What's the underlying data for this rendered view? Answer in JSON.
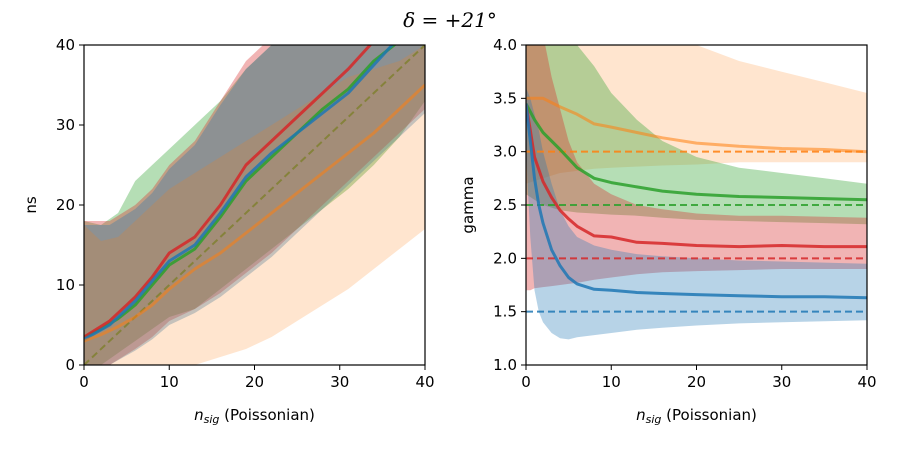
{
  "figure": {
    "title": "δ = +21°"
  },
  "colors": {
    "blue": "#1f77b4",
    "red": "#d62728",
    "green": "#2ca02c",
    "orange": "#ff7f0e"
  },
  "chart_data": [
    {
      "type": "line",
      "xlabel_main": "n",
      "xlabel_sub": "sig",
      "xlabel_rest": " (Poissonian)",
      "ylabel": "ns",
      "xlim": [
        0,
        40
      ],
      "ylim": [
        0,
        40
      ],
      "xticks": [
        "0",
        "10",
        "20",
        "30",
        "40"
      ],
      "yticks": [
        "0",
        "10",
        "20",
        "30",
        "40"
      ],
      "grid": false,
      "legend": "none",
      "reference_lines": [
        {
          "color": "olive",
          "style": "dashed",
          "x": [
            0,
            40
          ],
          "y": [
            0,
            40
          ]
        }
      ],
      "series": [
        {
          "color": "green",
          "x": [
            0,
            2,
            4,
            6,
            8,
            10,
            13,
            16,
            19,
            22,
            25,
            28,
            31,
            34,
            37,
            40
          ],
          "y": [
            3.5,
            4.5,
            5.8,
            7.5,
            10,
            12.5,
            14.5,
            18.5,
            23,
            26,
            29,
            32,
            34.5,
            38,
            40.5,
            43
          ],
          "band_low": [
            0.0,
            0.0,
            1.5,
            3.0,
            4.5,
            6.0,
            7.0,
            9.5,
            12.0,
            14.5,
            17.0,
            19.5,
            22.0,
            25.0,
            28.5,
            33.0
          ],
          "band_high": [
            18.0,
            17.5,
            19.0,
            23.0,
            25.0,
            27.0,
            30.0,
            33.0,
            37.0,
            40.0,
            43.0,
            46.0,
            49.0,
            52.0,
            55.0,
            58.0
          ]
        },
        {
          "color": "red",
          "x": [
            0,
            3,
            6,
            8,
            10,
            13,
            16,
            19,
            22,
            25,
            28,
            31,
            34,
            37,
            40
          ],
          "y": [
            3.5,
            5.5,
            8.5,
            11,
            14,
            16,
            20,
            25,
            28,
            31,
            34,
            37,
            40.5,
            44,
            47
          ],
          "band_low": [
            0.0,
            0.0,
            2.0,
            3.5,
            5.5,
            7.0,
            9.0,
            11.5,
            14.0,
            17.0,
            20.0,
            23.0,
            26.0,
            29.0,
            32.0
          ],
          "band_high": [
            18.0,
            18.0,
            20.0,
            22.0,
            25.0,
            28.0,
            33.0,
            38.0,
            41.0,
            44.0,
            47.0,
            50.0,
            53.0,
            56.0,
            59.0
          ]
        },
        {
          "color": "blue",
          "x": [
            0,
            3,
            6,
            8,
            10,
            13,
            16,
            19,
            22,
            25,
            28,
            31,
            34,
            37,
            40
          ],
          "y": [
            3.2,
            5,
            8,
            10.5,
            13,
            15,
            19,
            23.5,
            26.5,
            29,
            31.5,
            34,
            37.5,
            41,
            44
          ],
          "band_low": [
            0.0,
            0.0,
            1.8,
            3.2,
            5.0,
            6.5,
            8.5,
            11.0,
            13.5,
            16.5,
            19.5,
            22.5,
            25.5,
            28.5,
            31.5
          ],
          "band_high": [
            17.5,
            17.5,
            19.5,
            21.5,
            24.5,
            27.5,
            32.5,
            37.0,
            40.0,
            43.0,
            46.0,
            49.0,
            52.0,
            55.0,
            58.0
          ]
        },
        {
          "color": "orange",
          "x": [
            0,
            2,
            4,
            6,
            8,
            10,
            13,
            16,
            19,
            22,
            25,
            28,
            31,
            34,
            37,
            40
          ],
          "y": [
            3,
            3.8,
            4.8,
            6,
            7.5,
            9.5,
            12,
            14,
            16.5,
            19,
            21.5,
            24,
            26.5,
            29,
            32,
            35
          ],
          "band_low": [
            0.0,
            0.0,
            0.0,
            0.0,
            0.0,
            0.0,
            0.0,
            1.0,
            2.0,
            3.5,
            5.5,
            7.5,
            9.5,
            12.0,
            14.5,
            17.0
          ],
          "band_high": [
            17.5,
            15.5,
            16.0,
            18.0,
            20.0,
            22.0,
            24.0,
            26.0,
            28.0,
            30.0,
            32.0,
            34.0,
            36.0,
            37.0,
            38.0,
            40.0
          ]
        }
      ]
    },
    {
      "type": "line",
      "xlabel_main": "n",
      "xlabel_sub": "sig",
      "xlabel_rest": " (Poissonian)",
      "ylabel": "gamma",
      "xlim": [
        0,
        40
      ],
      "ylim": [
        1.0,
        4.0
      ],
      "xticks": [
        "0",
        "10",
        "20",
        "30",
        "40"
      ],
      "yticks": [
        "1.0",
        "1.5",
        "2.0",
        "2.5",
        "3.0",
        "3.5",
        "4.0"
      ],
      "grid": false,
      "legend": "none",
      "reference_lines": [
        {
          "color": "blue",
          "style": "dashed",
          "y": 1.5
        },
        {
          "color": "red",
          "style": "dashed",
          "y": 2.0
        },
        {
          "color": "green",
          "style": "dashed",
          "y": 2.5
        },
        {
          "color": "orange",
          "style": "dashed",
          "y": 3.0
        }
      ],
      "series": [
        {
          "color": "orange",
          "x": [
            0,
            2,
            4,
            6,
            8,
            10,
            13,
            16,
            20,
            25,
            30,
            35,
            40
          ],
          "y": [
            3.5,
            3.5,
            3.42,
            3.35,
            3.26,
            3.23,
            3.18,
            3.13,
            3.08,
            3.05,
            3.03,
            3.02,
            3.0
          ],
          "band_low": [
            2.7,
            2.75,
            2.8,
            2.82,
            2.84,
            2.85,
            2.86,
            2.87,
            2.88,
            2.9,
            2.9,
            2.9,
            2.9
          ],
          "band_high": [
            4.1,
            4.1,
            4.1,
            4.1,
            4.1,
            4.1,
            4.1,
            4.1,
            4.0,
            3.85,
            3.75,
            3.65,
            3.55
          ]
        },
        {
          "color": "green",
          "x": [
            0,
            1,
            2,
            4,
            6,
            8,
            10,
            13,
            16,
            20,
            25,
            30,
            35,
            40
          ],
          "y": [
            3.45,
            3.3,
            3.18,
            3.02,
            2.85,
            2.75,
            2.71,
            2.67,
            2.63,
            2.6,
            2.58,
            2.57,
            2.56,
            2.55
          ],
          "band_low": [
            2.6,
            2.55,
            2.5,
            2.45,
            2.43,
            2.42,
            2.41,
            2.4,
            2.38,
            2.36,
            2.35,
            2.34,
            2.33,
            2.32
          ],
          "band_high": [
            4.1,
            4.1,
            4.1,
            4.1,
            4.0,
            3.8,
            3.55,
            3.3,
            3.1,
            2.95,
            2.85,
            2.8,
            2.75,
            2.7
          ]
        },
        {
          "color": "red",
          "x": [
            0,
            0.5,
            1,
            2,
            3,
            4,
            5,
            6,
            8,
            10,
            13,
            16,
            20,
            25,
            30,
            35,
            40
          ],
          "y": [
            3.45,
            3.2,
            2.95,
            2.72,
            2.57,
            2.45,
            2.37,
            2.3,
            2.21,
            2.2,
            2.15,
            2.14,
            2.12,
            2.11,
            2.12,
            2.11,
            2.11
          ],
          "band_low": [
            1.7,
            1.7,
            1.72,
            1.73,
            1.74,
            1.75,
            1.76,
            1.77,
            1.8,
            1.82,
            1.85,
            1.87,
            1.88,
            1.89,
            1.9,
            1.9,
            1.9
          ],
          "band_high": [
            4.1,
            4.1,
            4.1,
            4.1,
            3.7,
            3.4,
            3.1,
            2.9,
            2.7,
            2.6,
            2.5,
            2.46,
            2.42,
            2.4,
            2.4,
            2.39,
            2.38
          ]
        },
        {
          "color": "blue",
          "x": [
            0,
            0.5,
            1,
            1.5,
            2,
            3,
            4,
            5,
            6,
            8,
            10,
            13,
            16,
            20,
            25,
            30,
            35,
            40
          ],
          "y": [
            3.45,
            3.1,
            2.75,
            2.5,
            2.33,
            2.08,
            1.93,
            1.82,
            1.76,
            1.71,
            1.7,
            1.68,
            1.67,
            1.66,
            1.65,
            1.64,
            1.64,
            1.63
          ],
          "band_low": [
            3.0,
            2.2,
            1.7,
            1.5,
            1.4,
            1.3,
            1.25,
            1.24,
            1.26,
            1.28,
            1.3,
            1.33,
            1.35,
            1.37,
            1.39,
            1.4,
            1.41,
            1.42
          ],
          "band_high": [
            3.6,
            3.5,
            3.35,
            3.2,
            3.0,
            2.7,
            2.45,
            2.3,
            2.2,
            2.12,
            2.08,
            2.04,
            2.02,
            2.0,
            1.98,
            1.97,
            1.96,
            1.95
          ]
        }
      ]
    }
  ]
}
